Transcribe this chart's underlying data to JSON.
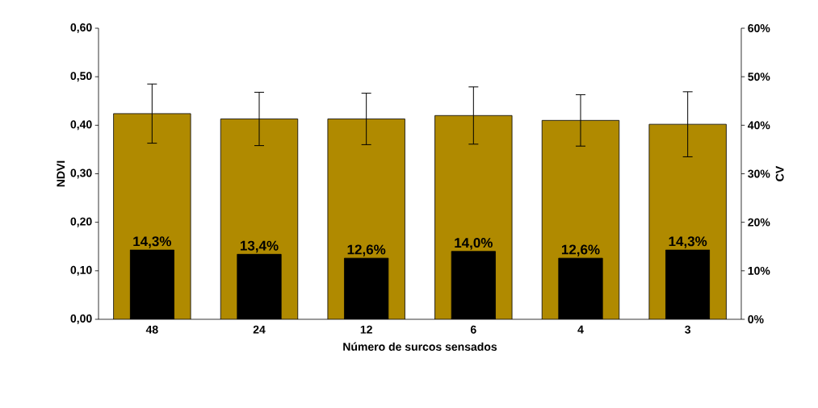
{
  "chart_data": {
    "type": "bar",
    "categories": [
      "48",
      "24",
      "12",
      "6",
      "4",
      "3"
    ],
    "xlabel": "Número de surcos sensados",
    "ylabel": "NDVI",
    "y2label": "CV",
    "ylim": [
      0,
      0.6
    ],
    "yticks": [
      {
        "value": 0,
        "label": "0,00"
      },
      {
        "value": 0.1,
        "label": "0,10"
      },
      {
        "value": 0.2,
        "label": "0,20"
      },
      {
        "value": 0.3,
        "label": "0,30"
      },
      {
        "value": 0.4,
        "label": "0,40"
      },
      {
        "value": 0.5,
        "label": "0,50"
      },
      {
        "value": 0.6,
        "label": "0,60"
      }
    ],
    "y2lim": [
      0,
      60
    ],
    "y2ticks": [
      {
        "value": 0,
        "label": "0%"
      },
      {
        "value": 10,
        "label": "10%"
      },
      {
        "value": 20,
        "label": "20%"
      },
      {
        "value": 30,
        "label": "30%"
      },
      {
        "value": 40,
        "label": "40%"
      },
      {
        "value": 50,
        "label": "50%"
      },
      {
        "value": 60,
        "label": "60%"
      }
    ],
    "series": [
      {
        "color": "#b08a00",
        "values": [
          0.424,
          0.413,
          0.413,
          0.42,
          0.41,
          0.402
        ],
        "errors": [
          0.061,
          0.055,
          0.053,
          0.059,
          0.053,
          0.067
        ]
      },
      {
        "color": "#000000",
        "axis": "y2",
        "values": [
          14.3,
          13.4,
          12.6,
          14.0,
          12.6,
          14.3
        ],
        "value_labels": [
          "14,3%",
          "13,4%",
          "12,6%",
          "14,0%",
          "12,6%",
          "14,3%"
        ]
      }
    ]
  }
}
